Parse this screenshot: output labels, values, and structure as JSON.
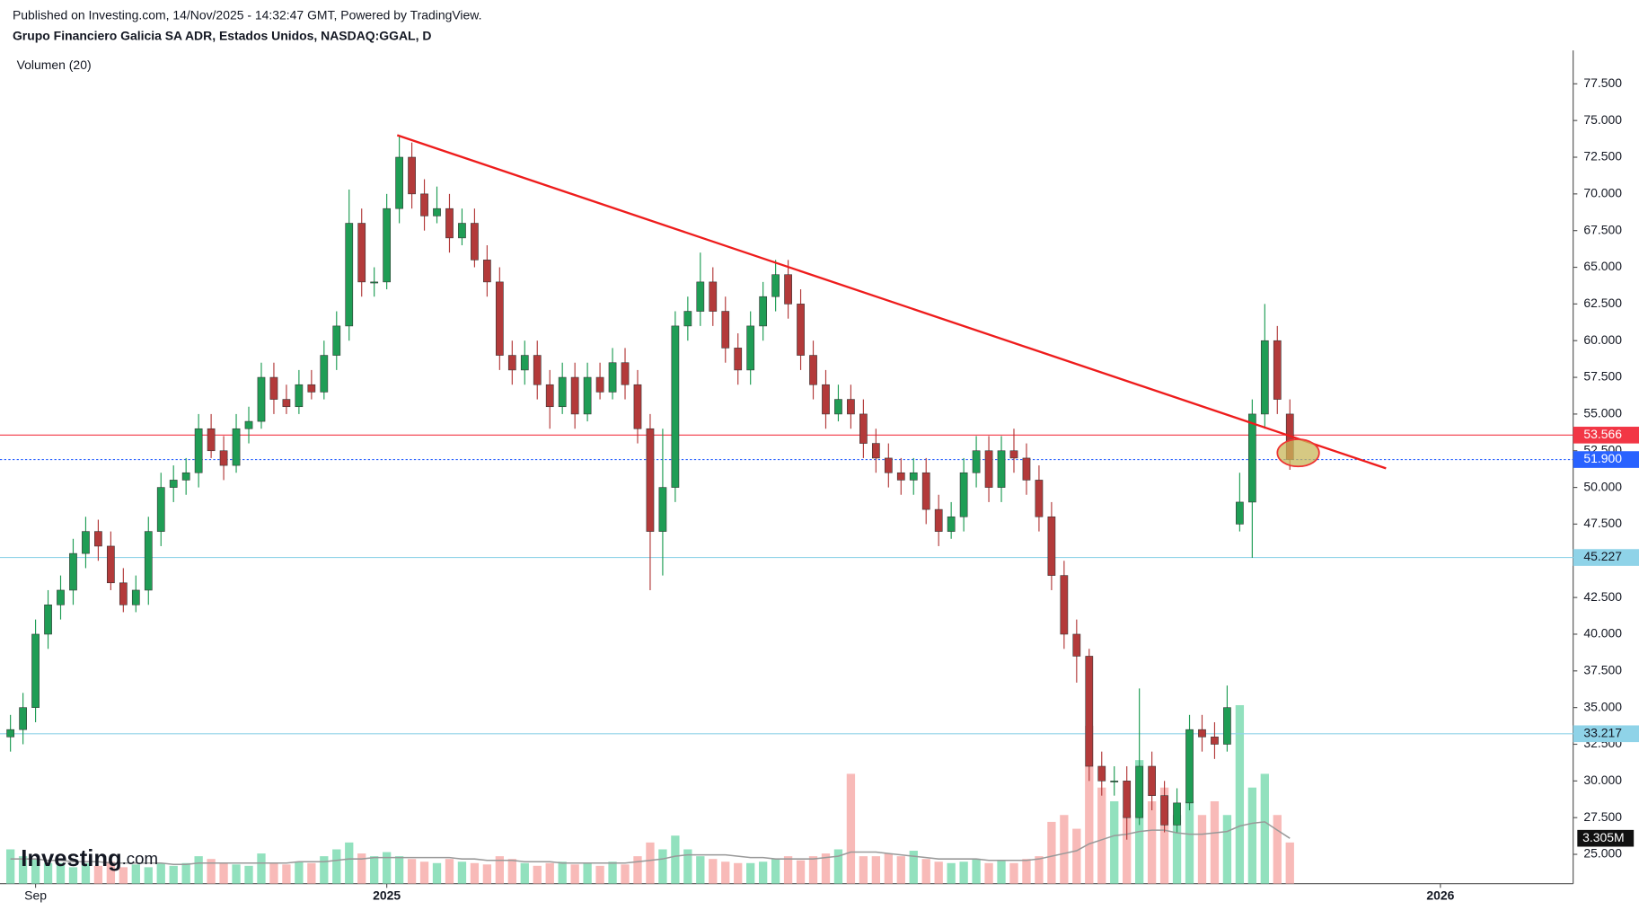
{
  "chart_data": {
    "type": "candlestick",
    "published": "Published on Investing.com, 14/Nov/2025 - 14:32:47 GMT, Powered by TradingView.",
    "title": "Grupo Financiero Galicia SA ADR, Estados Unidos, NASDAQ:GGAL, D",
    "indicator": "Volumen (20)",
    "logo": {
      "name": "Investing",
      "suffix": ".com"
    },
    "categories": [
      null,
      null,
      "Sep",
      null,
      null,
      null,
      null,
      null,
      null,
      null,
      null,
      null,
      null,
      null,
      null,
      null,
      null,
      null,
      null,
      null,
      null,
      null,
      null,
      null,
      null,
      null,
      null,
      null,
      null,
      null,
      "2025",
      null,
      null,
      null,
      null,
      null,
      null,
      null,
      null,
      null,
      null,
      null,
      null,
      null,
      null,
      null,
      null,
      null,
      null,
      null,
      null,
      null,
      null,
      null,
      null,
      null,
      null,
      null,
      null,
      null,
      null,
      null,
      null,
      null,
      null,
      null,
      null,
      null,
      null,
      null,
      null,
      null,
      null,
      null,
      null,
      null,
      null,
      null,
      null,
      null,
      null,
      null,
      null,
      null,
      null,
      null,
      null,
      null,
      null,
      null,
      null,
      null,
      null,
      null,
      null,
      null,
      null,
      null,
      null,
      null,
      null,
      null,
      null,
      null,
      null,
      null,
      null,
      null,
      null,
      null,
      null,
      null,
      null,
      null,
      "2026",
      null,
      null,
      null,
      null,
      null,
      null,
      null,
      null,
      null,
      null
    ],
    "open": [
      33,
      33.5,
      35,
      40,
      42,
      43,
      45.5,
      47,
      46,
      43.5,
      42,
      43,
      47,
      50,
      50.5,
      51,
      54,
      52.5,
      51.5,
      54,
      54.5,
      57.5,
      56,
      55.5,
      57,
      56.5,
      59,
      61,
      68,
      64,
      64,
      69,
      72.5,
      70,
      68.5,
      69,
      67,
      68,
      65.5,
      64,
      59,
      58,
      59,
      57,
      55.5,
      57.5,
      55,
      57.5,
      56.5,
      58.5,
      57,
      54,
      47,
      50,
      61,
      62,
      64,
      62,
      59.5,
      58,
      61,
      63,
      64.5,
      62.5,
      59,
      57,
      55,
      56,
      55,
      53,
      52,
      51,
      50.5,
      51,
      48.5,
      47,
      48,
      51,
      52.5,
      50,
      52.5,
      52,
      50.5,
      48,
      44,
      40,
      38.5,
      31,
      30,
      30,
      27.5,
      31,
      29,
      27,
      28.5,
      33.5,
      33,
      32.5,
      47.5,
      49,
      55,
      60,
      55,
      null,
      null,
      null,
      null,
      null,
      null,
      null,
      null,
      null,
      null,
      null,
      null,
      null,
      null,
      null,
      null,
      null,
      null,
      null,
      null,
      null,
      null
    ],
    "high": [
      34.5,
      36,
      41,
      43,
      44,
      46.5,
      48,
      47.8,
      47,
      44.5,
      44,
      48,
      51,
      51.5,
      52,
      55,
      55,
      53.5,
      55,
      55.5,
      58.5,
      58.5,
      57,
      58,
      58,
      60,
      62,
      70.3,
      69,
      65,
      70,
      74,
      73.5,
      71,
      70.5,
      70,
      69,
      69,
      66.5,
      65,
      60,
      60,
      60,
      58,
      58.5,
      58.5,
      58.5,
      58.5,
      59.5,
      59.5,
      58,
      55,
      54,
      62,
      63,
      66,
      65,
      63,
      60.5,
      62,
      64,
      65.5,
      65.5,
      63.5,
      60,
      58,
      57,
      57,
      56,
      54,
      53,
      52,
      52,
      52,
      49.5,
      49,
      52,
      53.5,
      53.5,
      53.5,
      54,
      53,
      51.5,
      49,
      45,
      41,
      39,
      32,
      31,
      31,
      36.3,
      32,
      30,
      29.5,
      34.5,
      34.5,
      34,
      36.5,
      51,
      56,
      62.5,
      61,
      56,
      null,
      null,
      null,
      null,
      null,
      null,
      null,
      null,
      null,
      null,
      null,
      null,
      null,
      null,
      null,
      null,
      null,
      null,
      null,
      null,
      null,
      null
    ],
    "low": [
      32,
      32.5,
      34,
      39,
      41,
      42,
      44.5,
      45,
      43,
      41.5,
      41.5,
      42,
      46,
      49,
      49.5,
      50,
      52,
      50.5,
      51,
      53,
      54,
      55,
      55,
      55,
      56,
      56,
      58,
      60,
      63,
      63,
      63.5,
      68,
      69,
      67.5,
      68,
      66,
      66.5,
      65,
      63,
      58,
      57,
      57,
      56,
      54,
      55,
      54,
      54.5,
      56,
      56,
      56,
      53,
      43,
      44,
      49,
      60,
      61,
      61,
      58.5,
      57,
      57,
      60,
      62,
      61.5,
      58,
      56,
      54,
      54.5,
      54,
      52,
      51,
      50,
      49.5,
      49.5,
      47.5,
      46,
      46.5,
      47,
      50,
      49,
      49,
      51,
      49.5,
      47,
      43,
      39,
      36.7,
      30,
      29,
      29,
      26,
      27,
      28,
      26.5,
      26.5,
      28,
      32,
      31.5,
      32,
      47,
      45.2,
      54,
      55,
      51.2,
      null,
      null,
      null,
      null,
      null,
      null,
      null,
      null,
      null,
      null,
      null,
      null,
      null,
      null,
      null,
      null,
      null,
      null,
      null,
      null,
      null,
      null
    ],
    "close": [
      33.5,
      35,
      40,
      42,
      43,
      45.5,
      47,
      46,
      43.5,
      42,
      43,
      47,
      50,
      50.5,
      51,
      54,
      52.5,
      51.5,
      54,
      54.5,
      57.5,
      56,
      55.5,
      57,
      56.5,
      59,
      61,
      68,
      64,
      64,
      69,
      72.5,
      70,
      68.5,
      69,
      67,
      68,
      65.5,
      64,
      59,
      58,
      59,
      57,
      55.5,
      57.5,
      55,
      57.5,
      56.5,
      58.5,
      57,
      54,
      47,
      50,
      61,
      62,
      64,
      62,
      59.5,
      58,
      61,
      63,
      64.5,
      62.5,
      59,
      57,
      55,
      56,
      55,
      53,
      52,
      51,
      50.5,
      51,
      48.5,
      47,
      48,
      51,
      52.5,
      50,
      52.5,
      52,
      50.5,
      48,
      44,
      40,
      38.5,
      31,
      30,
      30,
      27.5,
      31,
      29,
      27,
      28.5,
      33.5,
      33,
      32.5,
      35,
      49,
      55,
      60,
      56,
      51.9,
      null,
      null,
      null,
      null,
      null,
      null,
      null,
      null,
      null,
      null,
      null,
      null,
      null,
      null,
      null,
      null,
      null,
      null,
      null,
      null,
      null,
      null
    ],
    "volume": [
      2500000,
      2000000,
      1800000,
      1500000,
      1500000,
      1200000,
      1500000,
      1300000,
      1600000,
      1200000,
      1400000,
      1200000,
      1500000,
      1300000,
      1500000,
      2000000,
      1800000,
      1500000,
      1400000,
      1300000,
      2200000,
      1500000,
      1400000,
      1600000,
      1500000,
      2000000,
      2500000,
      3000000,
      2200000,
      2000000,
      2300000,
      2000000,
      1800000,
      1600000,
      1500000,
      1800000,
      1600000,
      1500000,
      1400000,
      2000000,
      1800000,
      1500000,
      1300000,
      1500000,
      1600000,
      1400000,
      1500000,
      1300000,
      1600000,
      1400000,
      2000000,
      3000000,
      2500000,
      3500000,
      2500000,
      2000000,
      1800000,
      1600000,
      1500000,
      1500000,
      1600000,
      1800000,
      2000000,
      1700000,
      2000000,
      2200000,
      2500000,
      8000000,
      2000000,
      2000000,
      2200000,
      2000000,
      2400000,
      1800000,
      1600000,
      1500000,
      1600000,
      1800000,
      1500000,
      1700000,
      1500000,
      1800000,
      2000000,
      4500000,
      5000000,
      4000000,
      11500000,
      7000000,
      6000000,
      5000000,
      9000000,
      6000000,
      7000000,
      5000000,
      6000000,
      5000000,
      6000000,
      5000000,
      13000000,
      7000000,
      8000000,
      5000000,
      3000000,
      null,
      null,
      null,
      null,
      null,
      null,
      null,
      null,
      null,
      null,
      null,
      null,
      null,
      null,
      null,
      null,
      null,
      null,
      null,
      null,
      null,
      null
    ],
    "volume_ma": [
      1800000,
      1800000,
      1800000,
      1700000,
      1700000,
      1600000,
      1600000,
      1600000,
      1500000,
      1500000,
      1500000,
      1500000,
      1500000,
      1400000,
      1400000,
      1500000,
      1500000,
      1500000,
      1500000,
      1500000,
      1500000,
      1500000,
      1500000,
      1600000,
      1600000,
      1600000,
      1700000,
      1800000,
      1800000,
      1900000,
      1900000,
      1900000,
      1900000,
      1900000,
      1900000,
      1900000,
      1800000,
      1800000,
      1700000,
      1700000,
      1700000,
      1600000,
      1600000,
      1600000,
      1500000,
      1500000,
      1500000,
      1500000,
      1500000,
      1500000,
      1600000,
      1700000,
      1800000,
      2000000,
      2100000,
      2100000,
      2100000,
      2100000,
      2000000,
      1900000,
      1900000,
      1800000,
      1800000,
      1800000,
      1800000,
      1900000,
      2000000,
      2300000,
      2300000,
      2300000,
      2200000,
      2100000,
      2000000,
      1900000,
      1800000,
      1800000,
      1800000,
      1800000,
      1700000,
      1700000,
      1700000,
      1700000,
      1800000,
      2000000,
      2200000,
      2400000,
      2900000,
      3200000,
      3500000,
      3600000,
      3800000,
      3900000,
      3900000,
      3700000,
      3600000,
      3600000,
      3700000,
      3800000,
      4200000,
      4400000,
      4500000,
      3900000,
      3305000,
      null,
      null,
      null,
      null,
      null,
      null,
      null,
      null,
      null,
      null,
      null,
      null,
      null,
      null,
      null,
      null,
      null,
      null,
      null,
      null,
      null,
      null
    ],
    "volume_ma_label": "3.305M",
    "volume_ylim": [
      0,
      15000000
    ],
    "up_color": "#1f9d55",
    "down_color": "#b33a3a",
    "volume_up_color": "#7fdcb3",
    "volume_down_color": "#f7aeac",
    "ma_color": "#999999",
    "ylim": [
      23,
      79.78
    ],
    "yticks": [
      {
        "value": 25,
        "label": "25.000"
      },
      {
        "value": 27.5,
        "label": "27.500"
      },
      {
        "value": 30,
        "label": "30.000"
      },
      {
        "value": 32.5,
        "label": "32.500"
      },
      {
        "value": 35,
        "label": "35.000"
      },
      {
        "value": 37.5,
        "label": "37.500"
      },
      {
        "value": 40,
        "label": "40.000"
      },
      {
        "value": 42.5,
        "label": "42.500"
      },
      {
        "value": 45,
        "label": "45.000"
      },
      {
        "value": 47.5,
        "label": "47.500"
      },
      {
        "value": 50,
        "label": "50.000"
      },
      {
        "value": 52.5,
        "label": "52.500"
      },
      {
        "value": 55,
        "label": "55.000"
      },
      {
        "value": 57.5,
        "label": "57.500"
      },
      {
        "value": 60,
        "label": "60.000"
      },
      {
        "value": 62.5,
        "label": "62.500"
      },
      {
        "value": 65,
        "label": "65.000"
      },
      {
        "value": 67.5,
        "label": "67.500"
      },
      {
        "value": 70,
        "label": "70.000"
      },
      {
        "value": 72.5,
        "label": "72.500"
      },
      {
        "value": 75,
        "label": "75.000"
      },
      {
        "value": 77.5,
        "label": "77.500"
      }
    ],
    "price_lines": [
      {
        "value": 53.566,
        "label": "53.566",
        "color": "#f23645",
        "text_color": "#ffffff",
        "dotted": false
      },
      {
        "value": 51.9,
        "label": "51.900",
        "color": "#2962ff",
        "text_color": "#ffffff",
        "dotted": true
      },
      {
        "value": 45.227,
        "label": "45.227",
        "color": "#8fd3e8",
        "text_color": "#131722",
        "dotted": false
      },
      {
        "value": 33.217,
        "label": "33.217",
        "color": "#8fd3e8",
        "text_color": "#131722",
        "dotted": false
      }
    ],
    "trend_line": {
      "start": 74,
      "end": 51.3,
      "color": "#ee1c1c"
    },
    "grid": false
  }
}
